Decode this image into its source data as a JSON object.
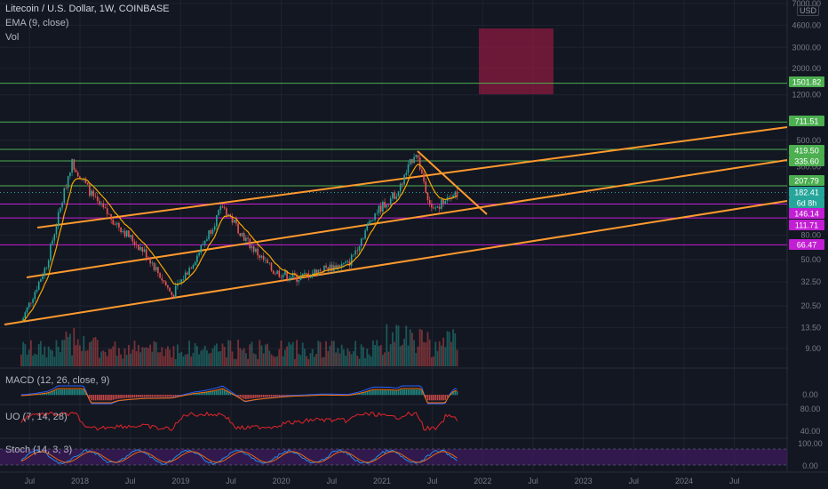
{
  "header": {
    "symbol_title": "Litecoin / U.S. Dollar, 1W, COINBASE",
    "ema_label": "EMA (9, close)",
    "vol_label": "Vol",
    "currency": "USD"
  },
  "panes": {
    "macd_label": "MACD (12, 26, close, 9)",
    "uo_label": "UO (7, 14, 28)",
    "stoch_label": "Stoch (14, 3, 3)"
  },
  "colors": {
    "background": "#131722",
    "grid": "#1f2330",
    "up": "#26a69a",
    "down": "#ef5350",
    "ema": "#f7a600",
    "trendline": "#ff9a2e",
    "hline_green": "#4caf50",
    "hline_purple": "#c21ed4",
    "box": "#8b1a3f",
    "uo": "#e0252a",
    "macd": "#2962ff",
    "signal": "#ff6d00",
    "stoch_k": "#2196f3",
    "stoch_d": "#ff6d00",
    "stoch_bg": "#3a1a5a"
  },
  "chart_data": {
    "type": "candlestick",
    "x_axis_labels": [
      "Jul",
      "2018",
      "Jul",
      "2019",
      "Jul",
      "2020",
      "Jul",
      "2021",
      "Jul",
      "2022",
      "Jul",
      "2023",
      "Jul",
      "2024",
      "Jul"
    ],
    "y_axis_ticks": [
      "7000.00",
      "4600.00",
      "3000.00",
      "2000.00",
      "1200.00",
      "500.00",
      "300.00",
      "80.00",
      "50.00",
      "32.50",
      "20.50",
      "13.50",
      "9.00"
    ],
    "y_scale": "log",
    "price_path": [
      [
        "2017-06",
        15
      ],
      [
        "2017-09",
        45
      ],
      [
        "2017-12",
        330
      ],
      [
        "2018-03",
        150
      ],
      [
        "2018-06",
        90
      ],
      [
        "2018-09",
        55
      ],
      [
        "2018-12",
        25
      ],
      [
        "2019-03",
        55
      ],
      [
        "2019-06",
        140
      ],
      [
        "2019-09",
        70
      ],
      [
        "2019-12",
        40
      ],
      [
        "2020-03",
        35
      ],
      [
        "2020-06",
        42
      ],
      [
        "2020-09",
        46
      ],
      [
        "2020-12",
        120
      ],
      [
        "2021-03",
        190
      ],
      [
        "2021-05",
        410
      ],
      [
        "2021-07",
        125
      ],
      [
        "2021-09",
        180
      ],
      [
        "2021-10",
        182
      ]
    ],
    "price_labels": [
      {
        "text": "1501.82",
        "color": "#4caf50"
      },
      {
        "text": "711.51",
        "color": "#4caf50"
      },
      {
        "text": "419.50",
        "color": "#4caf50"
      },
      {
        "text": "335.60",
        "color": "#4caf50"
      },
      {
        "text": "207.79",
        "color": "#4caf50"
      },
      {
        "text": "182.41",
        "color": "#26a69a"
      },
      {
        "text": "6d 8h",
        "color": "#26a69a"
      },
      {
        "text": "146.14",
        "color": "#c21ed4"
      },
      {
        "text": "111.71",
        "color": "#c21ed4"
      },
      {
        "text": "66.47",
        "color": "#c21ed4"
      }
    ],
    "horizontal_levels": [
      1501.82,
      711.51,
      419.5,
      335.6,
      207.79,
      146.14,
      111.71,
      66.47
    ],
    "macd_ticks": [
      "0.00"
    ],
    "uo_ticks": [
      "80.00",
      "40.00"
    ],
    "stoch_ticks": [
      "100.00",
      "0.00"
    ]
  }
}
